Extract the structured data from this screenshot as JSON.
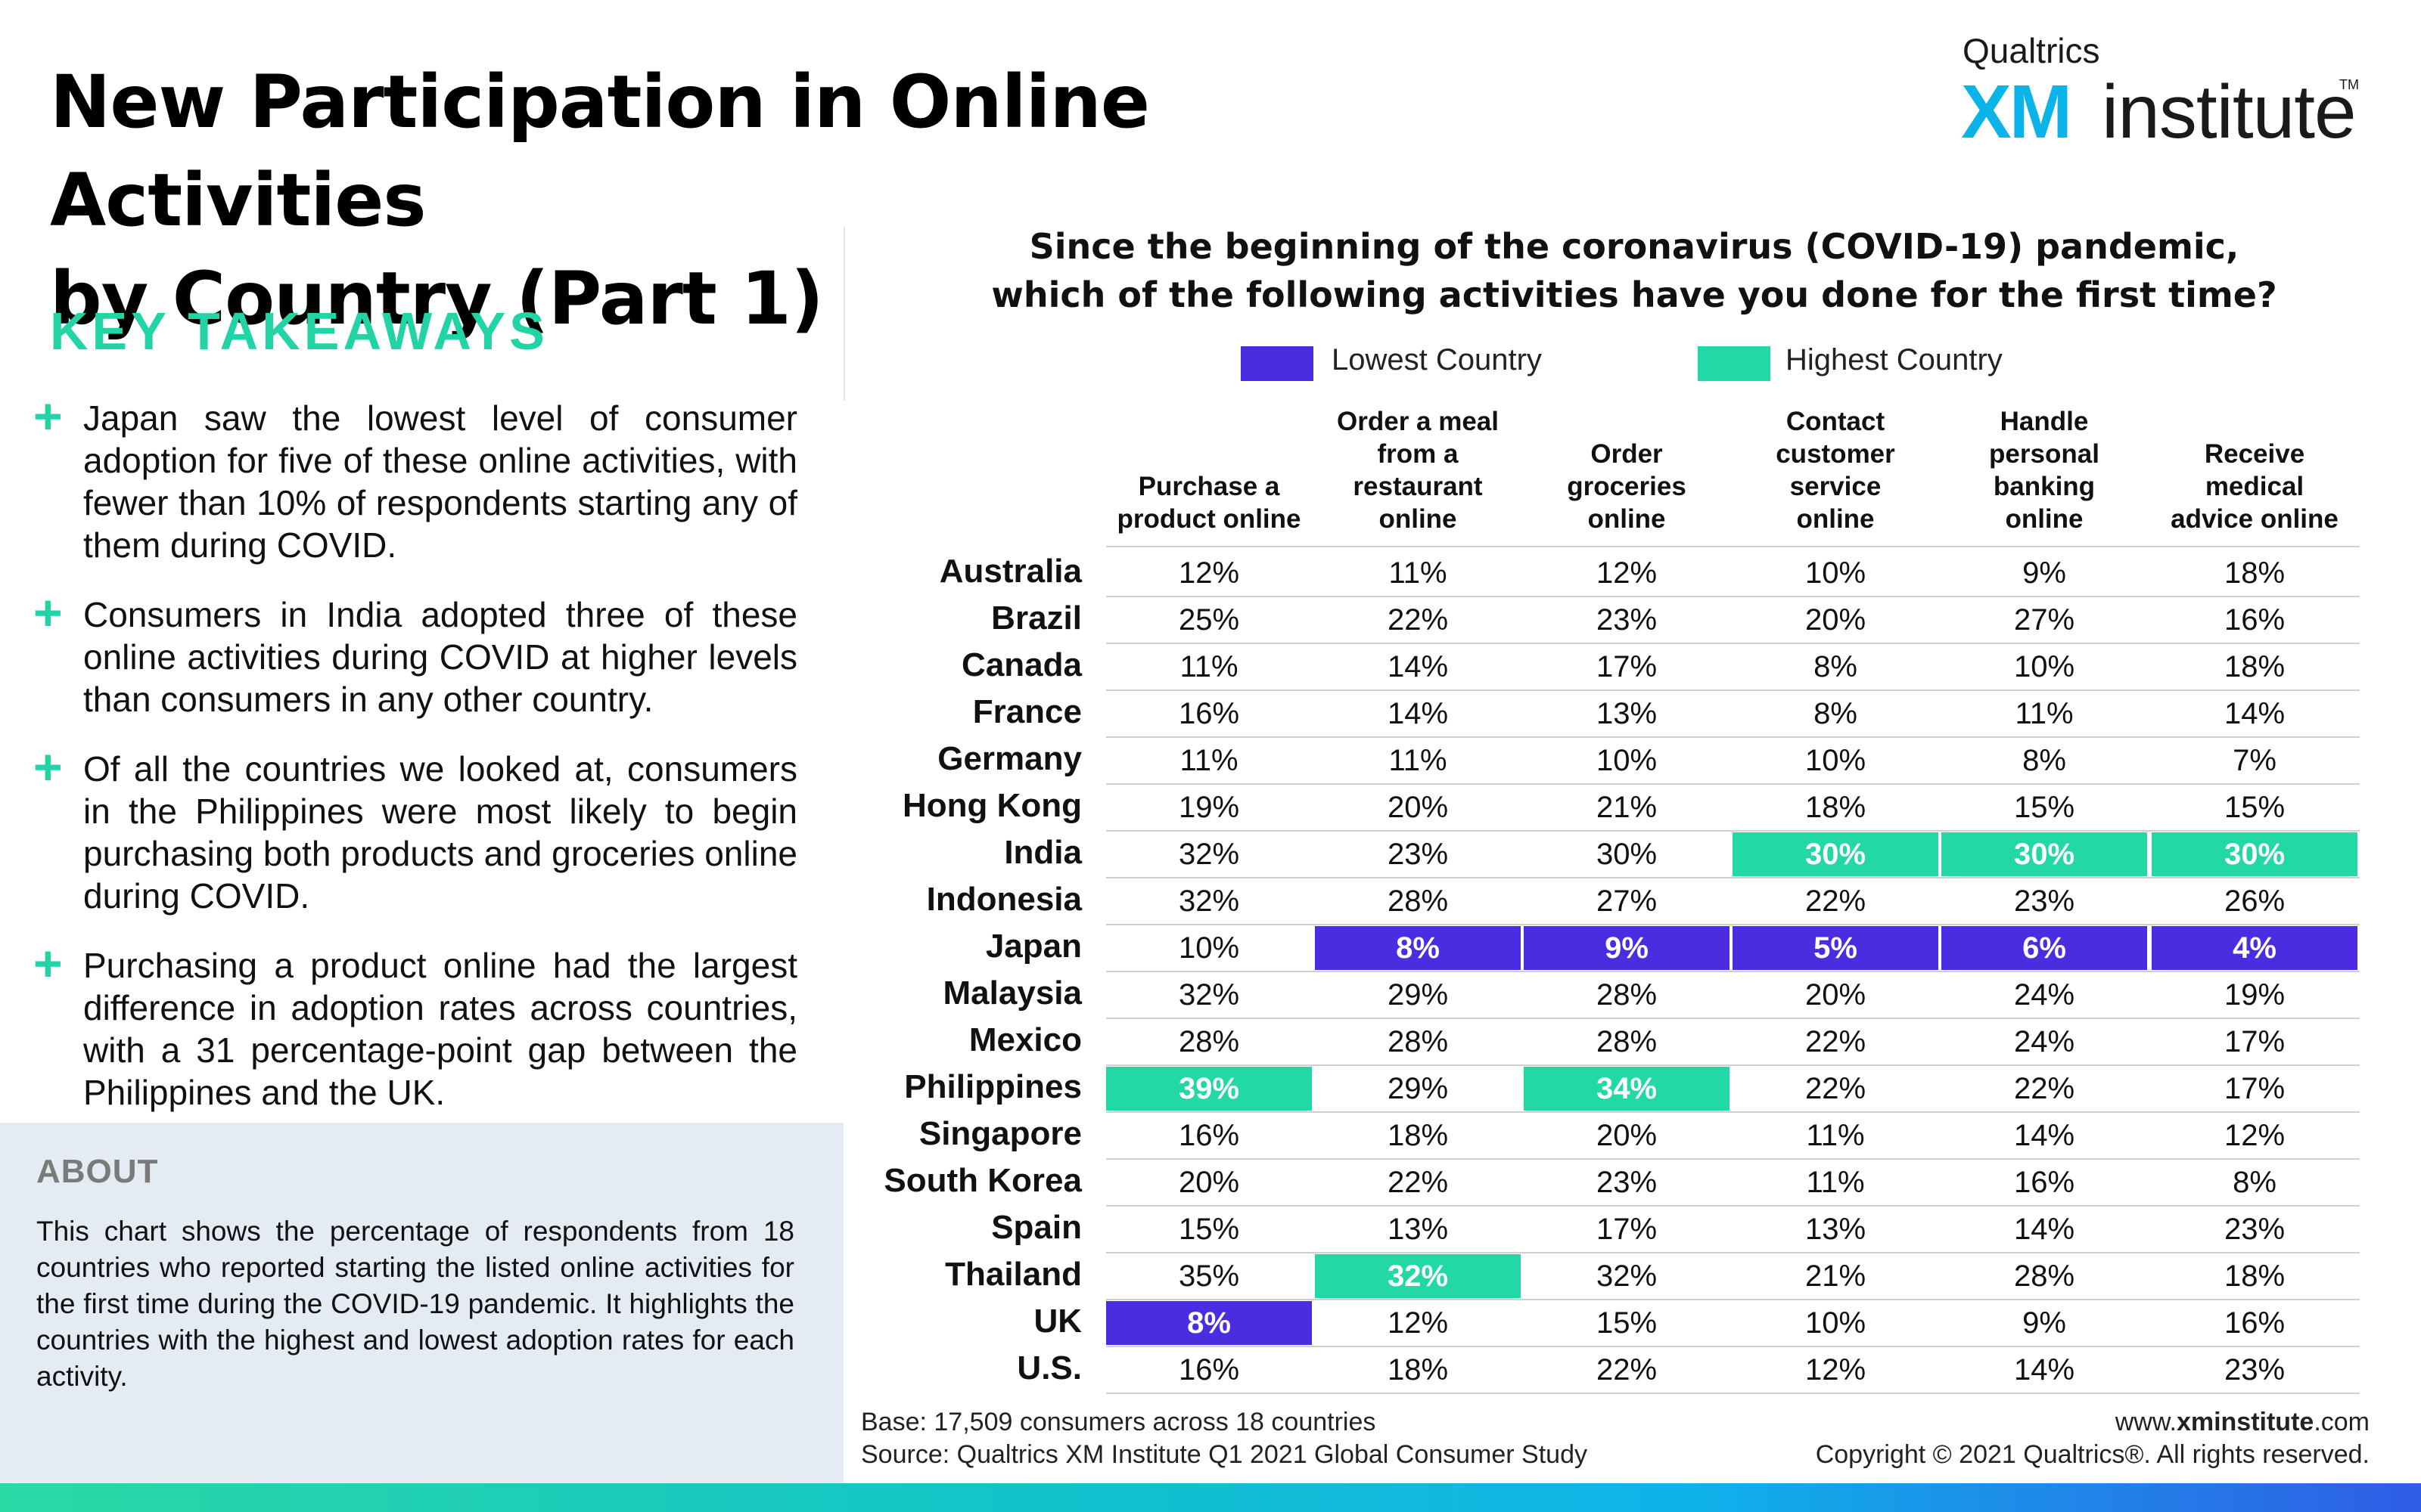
{
  "title_line1": "New Participation in Online Activities",
  "title_line2": "by Country (Part 1)",
  "logo": {
    "brand": "Qualtrics",
    "xm": "XM",
    "institute": "institute",
    "tm": "TM"
  },
  "key_takeaways": {
    "heading": "KEY TAKEAWAYS",
    "items": [
      "Japan saw the lowest level of consumer adoption for five of these online activities, with fewer than 10% of respondents starting any of them during COVID.",
      "Consumers in India adopted three of these online activities during COVID at higher levels than consumers in any other country.",
      "Of all the countries we looked at, consumers in the Philippines were most likely to begin purchasing both products and groceries online during COVID.",
      "Purchasing a product online had the largest difference in adoption rates across countries, with a 31 percentage-point gap between the Philippines and the UK."
    ]
  },
  "about": {
    "heading": "ABOUT",
    "body": "This chart shows the percentage of respondents from 18 countries who reported starting the listed online activities for the first time during the COVID-19 pandemic. It highlights the countries with the highest and lowest adoption rates for each activity."
  },
  "chart_data": {
    "type": "table",
    "title_line1": "Since the beginning of the coronavirus (COVID-19) pandemic,",
    "title_line2": "which of the following activities have you done for the first time?",
    "legend": [
      {
        "label": "Lowest Country",
        "color": "#4c2ce0"
      },
      {
        "label": "Highest Country",
        "color": "#22d8a5"
      }
    ],
    "columns": [
      [
        "Purchase a",
        "product online"
      ],
      [
        "Order a meal",
        "from a",
        "restaurant",
        "online"
      ],
      [
        "Order",
        "groceries",
        "online"
      ],
      [
        "Contact",
        "customer",
        "service",
        "online"
      ],
      [
        "Handle",
        "personal",
        "banking",
        "online"
      ],
      [
        "Receive",
        "medical",
        "advice online"
      ]
    ],
    "rows": [
      {
        "country": "Australia",
        "values": [
          "12%",
          "11%",
          "12%",
          "10%",
          "9%",
          "18%"
        ],
        "flags": [
          "",
          "",
          "",
          "",
          "",
          ""
        ]
      },
      {
        "country": "Brazil",
        "values": [
          "25%",
          "22%",
          "23%",
          "20%",
          "27%",
          "16%"
        ],
        "flags": [
          "",
          "",
          "",
          "",
          "",
          ""
        ]
      },
      {
        "country": "Canada",
        "values": [
          "11%",
          "14%",
          "17%",
          "8%",
          "10%",
          "18%"
        ],
        "flags": [
          "",
          "",
          "",
          "",
          "",
          ""
        ]
      },
      {
        "country": "France",
        "values": [
          "16%",
          "14%",
          "13%",
          "8%",
          "11%",
          "14%"
        ],
        "flags": [
          "",
          "",
          "",
          "",
          "",
          ""
        ]
      },
      {
        "country": "Germany",
        "values": [
          "11%",
          "11%",
          "10%",
          "10%",
          "8%",
          "7%"
        ],
        "flags": [
          "",
          "",
          "",
          "",
          "",
          ""
        ]
      },
      {
        "country": "Hong Kong",
        "values": [
          "19%",
          "20%",
          "21%",
          "18%",
          "15%",
          "15%"
        ],
        "flags": [
          "",
          "",
          "",
          "",
          "",
          ""
        ]
      },
      {
        "country": "India",
        "values": [
          "32%",
          "23%",
          "30%",
          "30%",
          "30%",
          "30%"
        ],
        "flags": [
          "",
          "",
          "",
          "high",
          "high",
          "high"
        ]
      },
      {
        "country": "Indonesia",
        "values": [
          "32%",
          "28%",
          "27%",
          "22%",
          "23%",
          "26%"
        ],
        "flags": [
          "",
          "",
          "",
          "",
          "",
          ""
        ]
      },
      {
        "country": "Japan",
        "values": [
          "10%",
          "8%",
          "9%",
          "5%",
          "6%",
          "4%"
        ],
        "flags": [
          "",
          "low",
          "low",
          "low",
          "low",
          "low"
        ]
      },
      {
        "country": "Malaysia",
        "values": [
          "32%",
          "29%",
          "28%",
          "20%",
          "24%",
          "19%"
        ],
        "flags": [
          "",
          "",
          "",
          "",
          "",
          ""
        ]
      },
      {
        "country": "Mexico",
        "values": [
          "28%",
          "28%",
          "28%",
          "22%",
          "24%",
          "17%"
        ],
        "flags": [
          "",
          "",
          "",
          "",
          "",
          ""
        ]
      },
      {
        "country": "Philippines",
        "values": [
          "39%",
          "29%",
          "34%",
          "22%",
          "22%",
          "17%"
        ],
        "flags": [
          "high",
          "",
          "high",
          "",
          "",
          ""
        ]
      },
      {
        "country": "Singapore",
        "values": [
          "16%",
          "18%",
          "20%",
          "11%",
          "14%",
          "12%"
        ],
        "flags": [
          "",
          "",
          "",
          "",
          "",
          ""
        ]
      },
      {
        "country": "South Korea",
        "values": [
          "20%",
          "22%",
          "23%",
          "11%",
          "16%",
          "8%"
        ],
        "flags": [
          "",
          "",
          "",
          "",
          "",
          ""
        ]
      },
      {
        "country": "Spain",
        "values": [
          "15%",
          "13%",
          "17%",
          "13%",
          "14%",
          "23%"
        ],
        "flags": [
          "",
          "",
          "",
          "",
          "",
          ""
        ]
      },
      {
        "country": "Thailand",
        "values": [
          "35%",
          "32%",
          "32%",
          "21%",
          "28%",
          "18%"
        ],
        "flags": [
          "",
          "high",
          "",
          "",
          "",
          ""
        ]
      },
      {
        "country": "UK",
        "values": [
          "8%",
          "12%",
          "15%",
          "10%",
          "9%",
          "16%"
        ],
        "flags": [
          "low",
          "",
          "",
          "",
          "",
          ""
        ]
      },
      {
        "country": "U.S.",
        "values": [
          "16%",
          "18%",
          "22%",
          "12%",
          "14%",
          "23%"
        ],
        "flags": [
          "",
          "",
          "",
          "",
          "",
          ""
        ]
      }
    ]
  },
  "footer": {
    "base": "Base: 17,509 consumers across 18 countries",
    "source": "Source: Qualtrics XM Institute Q1 2021 Global Consumer Study",
    "url_prefix": "www.",
    "url_bold": "xminstitute",
    "url_suffix": ".com",
    "copyright": "Copyright © 2021 Qualtrics®. All rights reserved."
  }
}
